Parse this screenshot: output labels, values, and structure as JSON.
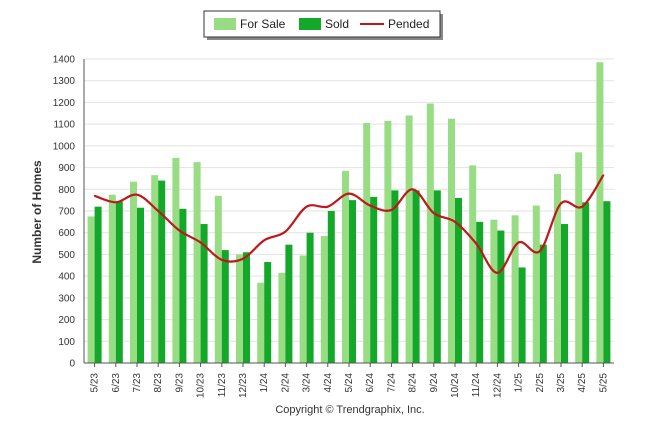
{
  "chart_data": {
    "type": "bar",
    "title": "",
    "xlabel": "",
    "ylabel": "Number of Homes",
    "ylim": [
      0,
      1400
    ],
    "yticks": [
      0,
      100,
      200,
      300,
      400,
      500,
      600,
      700,
      800,
      900,
      1000,
      1100,
      1200,
      1300,
      1400
    ],
    "grid": true,
    "legend_position": "top-center",
    "categories": [
      "5/23",
      "6/23",
      "7/23",
      "8/23",
      "9/23",
      "10/23",
      "11/23",
      "12/23",
      "1/24",
      "2/24",
      "3/24",
      "4/24",
      "5/24",
      "6/24",
      "7/24",
      "8/24",
      "9/24",
      "10/24",
      "11/24",
      "12/24",
      "1/25",
      "2/25",
      "3/25",
      "4/25",
      "5/25"
    ],
    "series": [
      {
        "name": "For Sale",
        "type": "bar",
        "color": "#98dd84",
        "values": [
          675,
          775,
          835,
          865,
          945,
          925,
          770,
          500,
          370,
          415,
          495,
          585,
          885,
          1105,
          1115,
          1140,
          1195,
          1125,
          910,
          660,
          680,
          725,
          870,
          970,
          1385
        ]
      },
      {
        "name": "Sold",
        "type": "bar",
        "color": "#13a829",
        "values": [
          720,
          745,
          715,
          840,
          710,
          640,
          520,
          510,
          465,
          545,
          600,
          700,
          750,
          765,
          795,
          795,
          795,
          760,
          650,
          610,
          440,
          545,
          640,
          740,
          745
        ]
      },
      {
        "name": "Pended",
        "type": "line",
        "color": "#c0171a",
        "values": [
          770,
          740,
          775,
          700,
          610,
          555,
          475,
          480,
          565,
          605,
          720,
          720,
          780,
          725,
          705,
          800,
          690,
          650,
          550,
          415,
          555,
          515,
          735,
          720,
          865
        ]
      }
    ]
  },
  "footer": {
    "copyright": "Copyright © Trendgraphix, Inc."
  }
}
